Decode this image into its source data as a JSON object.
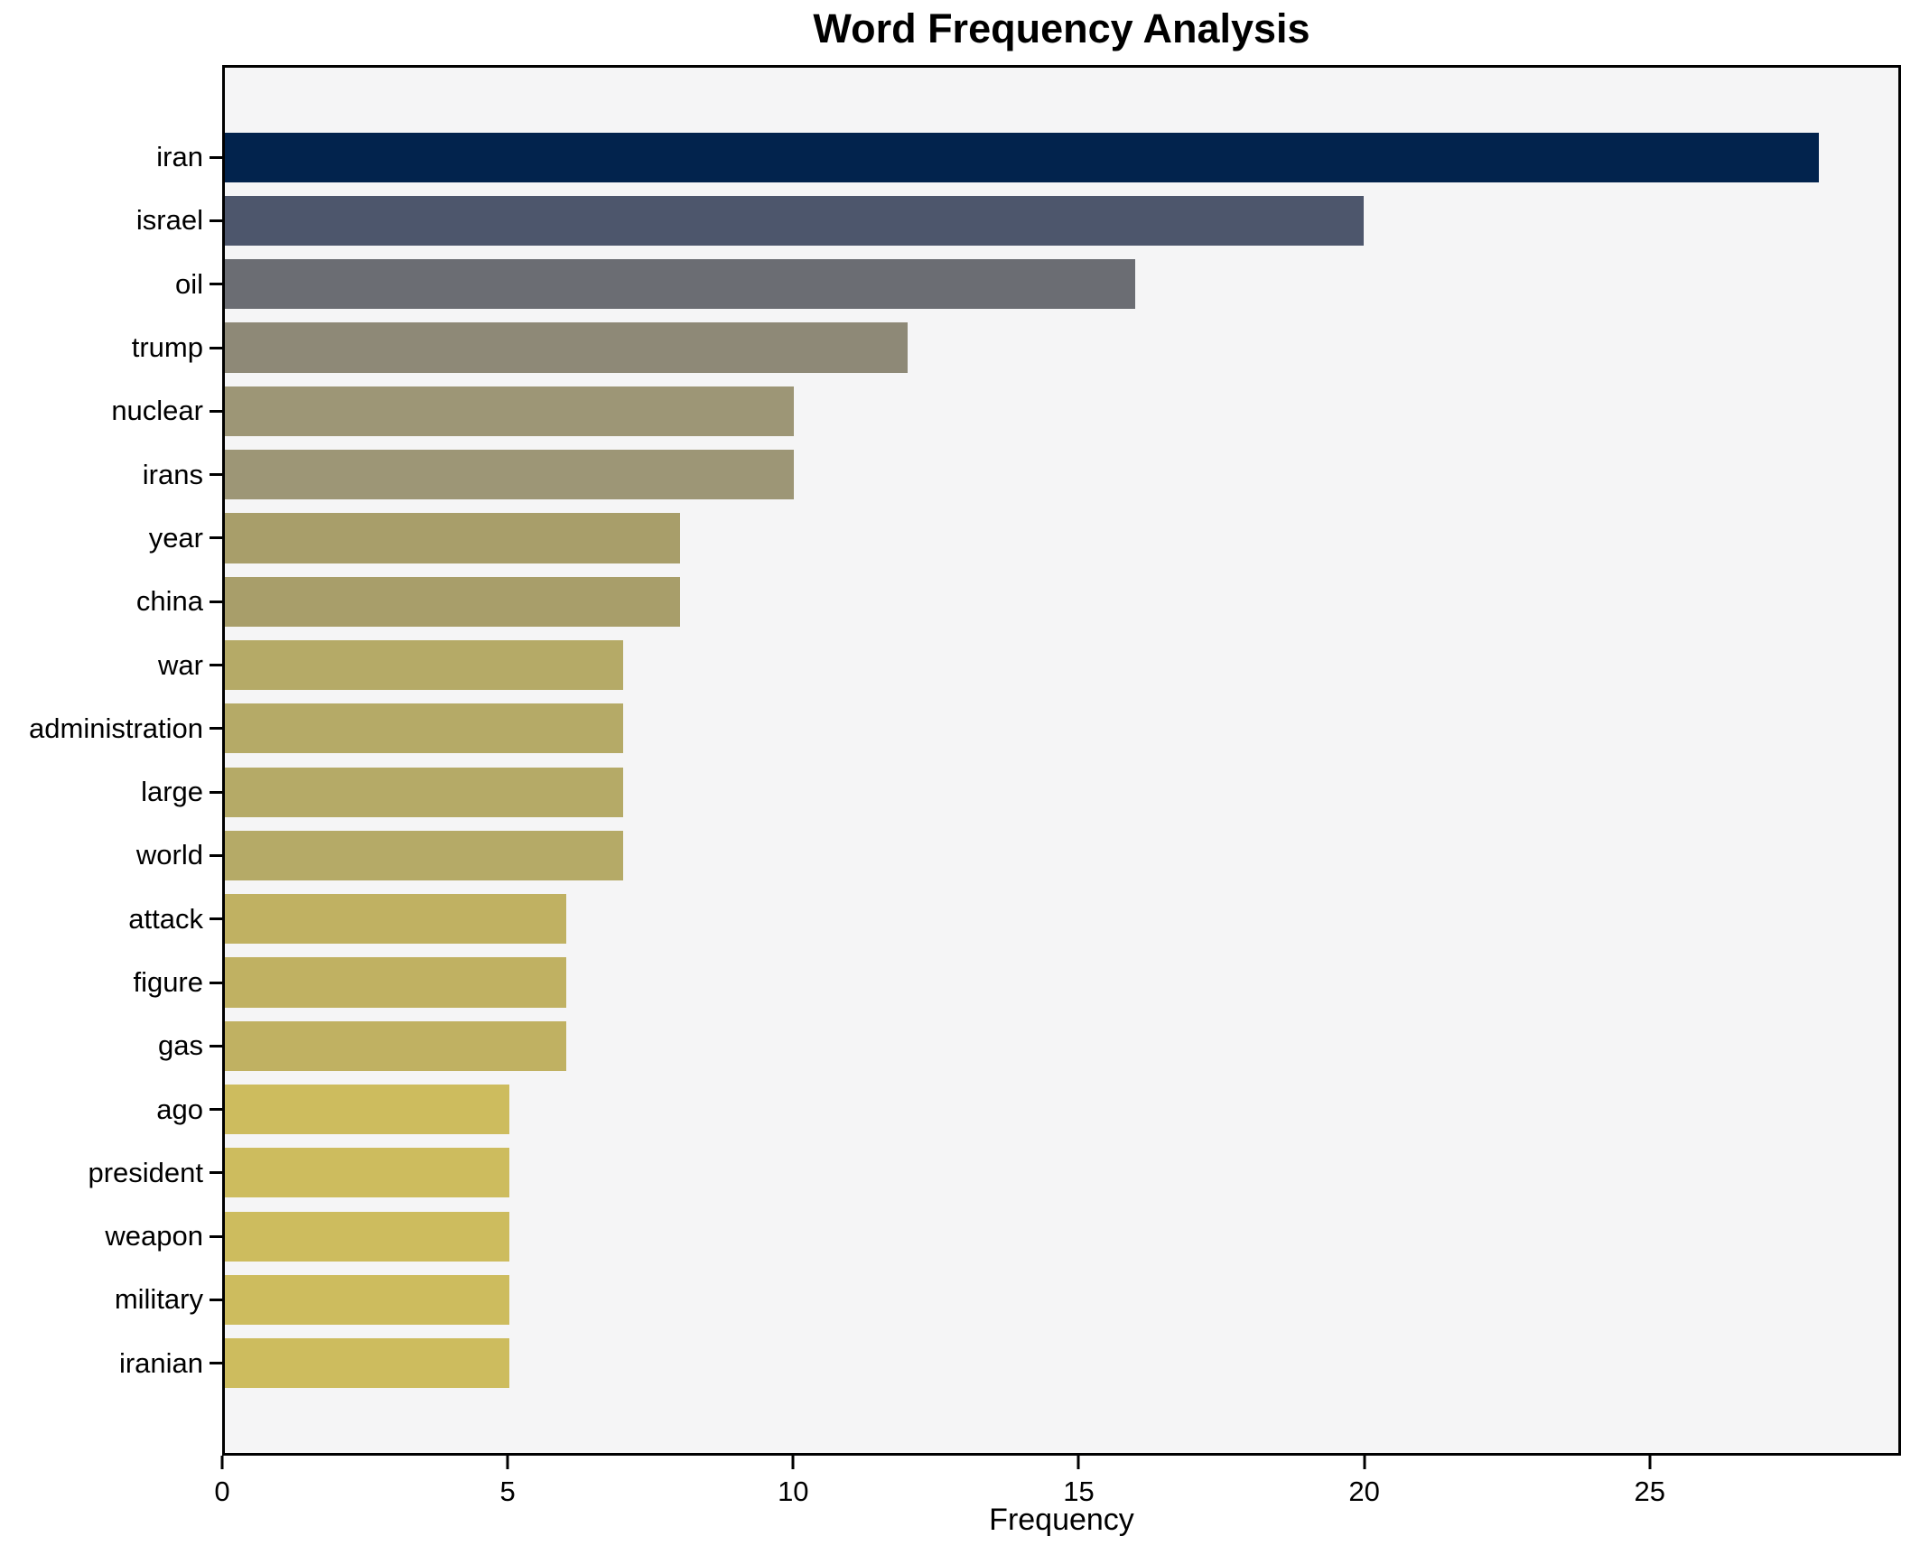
{
  "chart_data": {
    "type": "bar",
    "orientation": "horizontal",
    "title": "Word Frequency Analysis",
    "xlabel": "Frequency",
    "ylabel": "",
    "categories": [
      "iran",
      "israel",
      "oil",
      "trump",
      "nuclear",
      "irans",
      "year",
      "china",
      "war",
      "administration",
      "large",
      "world",
      "attack",
      "figure",
      "gas",
      "ago",
      "president",
      "weapon",
      "military",
      "iranian"
    ],
    "values": [
      28,
      20,
      16,
      12,
      10,
      10,
      8,
      8,
      7,
      7,
      7,
      7,
      6,
      6,
      6,
      5,
      5,
      5,
      5,
      5
    ],
    "bar_colors": [
      "#02234d",
      "#4d566c",
      "#6b6d73",
      "#8e8977",
      "#9d9676",
      "#9d9676",
      "#a89e6a",
      "#a89e6a",
      "#b5aa67",
      "#b5aa67",
      "#b5aa67",
      "#b5aa67",
      "#c0b162",
      "#c0b162",
      "#c0b162",
      "#cdbc5e",
      "#cdbc5e",
      "#cdbc5e",
      "#cdbc5e",
      "#cdbc5e"
    ],
    "x_ticks": [
      0,
      5,
      10,
      15,
      20,
      25
    ],
    "xlim": [
      0,
      29.4
    ],
    "grid": false,
    "legend_position": "none",
    "plot_background": "#f5f5f6",
    "spine_color": "#000000",
    "bar_height_fraction": 0.785
  }
}
